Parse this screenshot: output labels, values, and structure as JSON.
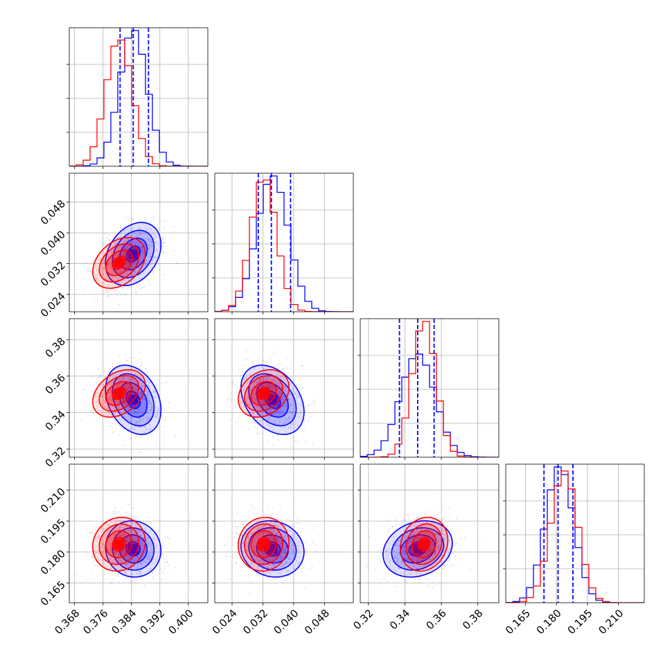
{
  "chart_data": {
    "type": "corner",
    "grid": true,
    "params": [
      {
        "ticks": [
          "0.368",
          "0.376",
          "0.384",
          "0.392",
          "0.400"
        ],
        "tick_values": [
          0.368,
          0.376,
          0.384,
          0.392,
          0.4
        ],
        "range": [
          0.3665,
          0.4055
        ]
      },
      {
        "ticks": [
          "0.024",
          "0.032",
          "0.040",
          "0.048"
        ],
        "tick_values": [
          0.024,
          0.032,
          0.04,
          0.048
        ],
        "range": [
          0.0195,
          0.0555
        ]
      },
      {
        "ticks": [
          "0.32",
          "0.34",
          "0.36",
          "0.38"
        ],
        "tick_values": [
          0.32,
          0.34,
          0.36,
          0.38
        ],
        "range": [
          0.3155,
          0.3915
        ]
      },
      {
        "ticks": [
          "0.165",
          "0.180",
          "0.195",
          "0.210"
        ],
        "tick_values": [
          0.165,
          0.18,
          0.195,
          0.21
        ],
        "range": [
          0.1555,
          0.2225
        ]
      }
    ],
    "series": [
      {
        "color": "#0000ff",
        "means": [
          0.3845,
          0.0345,
          0.347,
          0.1815
        ],
        "sds": [
          0.0039,
          0.0041,
          0.0095,
          0.0068
        ],
        "quantiles": [
          [
            0.3808,
            0.3845,
            0.3888
          ],
          [
            0.0308,
            0.0342,
            0.0392
          ],
          [
            0.337,
            0.347,
            0.356
          ],
          [
            0.174,
            0.1808,
            0.188
          ]
        ],
        "correlations": [
          [
            0,
            1,
            0.3
          ],
          [
            0,
            2,
            -0.3
          ],
          [
            0,
            3,
            -0.05
          ],
          [
            1,
            2,
            -0.35
          ],
          [
            1,
            3,
            -0.1
          ],
          [
            2,
            3,
            0.2
          ]
        ],
        "hist_peaks": [
          1.0,
          1.0,
          0.76,
          1.0
        ]
      },
      {
        "color": "#ff0000",
        "means": [
          0.3805,
          0.0322,
          0.3505,
          0.1838
        ],
        "sds": [
          0.0037,
          0.0033,
          0.0065,
          0.0065
        ],
        "correlations": [
          [
            0,
            1,
            0.35
          ],
          [
            0,
            2,
            0.35
          ],
          [
            0,
            3,
            0.1
          ],
          [
            1,
            2,
            0.25
          ],
          [
            1,
            3,
            0.05
          ],
          [
            2,
            3,
            0.15
          ]
        ],
        "hist_peaks": [
          0.93,
          0.97,
          1.0,
          0.97
        ]
      }
    ],
    "contour_levels_sigma": [
      0.5,
      1.0,
      1.5,
      2.0
    ]
  }
}
